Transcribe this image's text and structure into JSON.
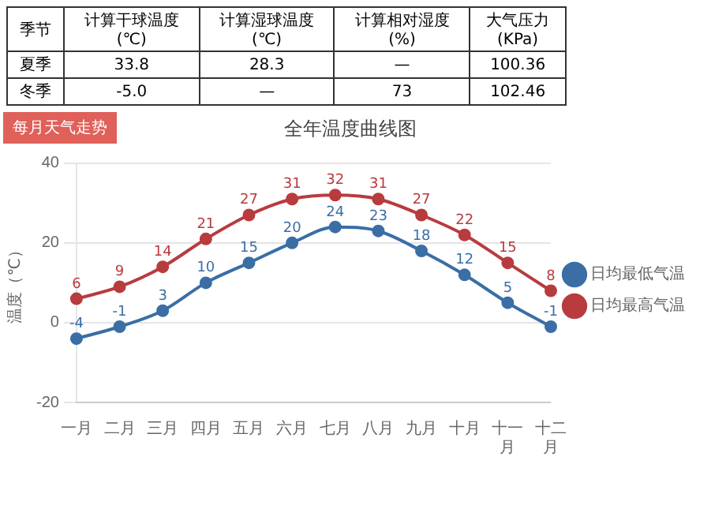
{
  "chart_data": [
    {
      "type": "other",
      "categories": [
        "季节",
        "计算干球温度\n(℃)",
        "计算湿球温度\n(℃)",
        "计算相对湿度\n(%)",
        "大气压力\n(KPa)"
      ],
      "y_categories": [
        "夏季",
        "冬季"
      ],
      "cell_labels": [
        [
          "33.8",
          "28.3",
          "—",
          "100.36"
        ],
        [
          "-5.0",
          "—",
          "73",
          "102.46"
        ]
      ]
    },
    {
      "type": "line",
      "title": "全年温度曲线图",
      "ylabel": "温度（℃）",
      "annotations": [
        "每月天气走势"
      ],
      "categories": [
        "一月",
        "二月",
        "三月",
        "四月",
        "五月",
        "六月",
        "七月",
        "八月",
        "九月",
        "十月",
        "十一月",
        "十二月"
      ],
      "series": [
        {
          "name": "日均最低气温",
          "color": "#3a6ea5",
          "values": [
            -4,
            -1,
            3,
            10,
            15,
            20,
            24,
            23,
            18,
            12,
            5,
            -1
          ]
        },
        {
          "name": "日均最高气温",
          "color": "#b83b3e",
          "values": [
            6,
            9,
            14,
            21,
            27,
            31,
            32,
            31,
            27,
            22,
            15,
            8
          ]
        }
      ],
      "ylim": [
        -20,
        40
      ],
      "yticks": [
        -20,
        0,
        20,
        40
      ],
      "grid": "y",
      "legend": "right",
      "marker": "circle",
      "data_labels": true
    }
  ]
}
